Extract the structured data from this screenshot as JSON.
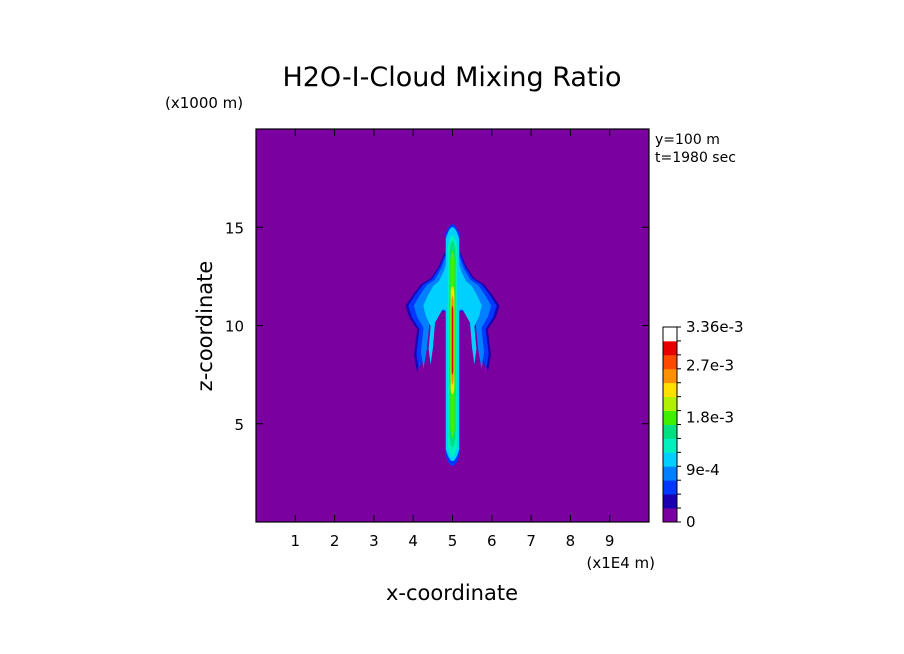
{
  "chart_data": {
    "type": "heatmap",
    "title": "H2O-I-Cloud Mixing Ratio",
    "xlabel": "x-coordinate",
    "ylabel": "z-coordinate",
    "x_unit": "(x1E4 m)",
    "y_unit": "(x1000 m)",
    "annotations": [
      "y=100 m",
      "t=1980 sec"
    ],
    "xlim": [
      0,
      10
    ],
    "ylim": [
      0,
      20
    ],
    "x_ticks": [
      1,
      2,
      3,
      4,
      5,
      6,
      7,
      8,
      9
    ],
    "y_ticks": [
      5,
      10,
      15
    ],
    "colorbar": {
      "range": [
        0,
        0.00336
      ],
      "labels": [
        {
          "value": 0,
          "text": "0"
        },
        {
          "value": 0.0009,
          "text": "9e-4"
        },
        {
          "value": 0.0018,
          "text": "1.8e-3"
        },
        {
          "value": 0.0027,
          "text": "2.7e-3"
        },
        {
          "value": 0.00336,
          "text": "3.36e-3"
        }
      ],
      "colors": [
        "#7a00a0",
        "#1a00b0",
        "#0038ff",
        "#0080ff",
        "#00d0ff",
        "#00f0c0",
        "#00e080",
        "#40f000",
        "#b0f000",
        "#ffe000",
        "#ff9000",
        "#ff4800",
        "#e80000",
        "#ffffff"
      ]
    },
    "plume": {
      "stem": {
        "x_center": 5.0,
        "z_bottom": 2.9,
        "z_top": 15.1,
        "half_width": 0.17,
        "core_max": 0.0029
      },
      "anvil": {
        "x_range": [
          3.85,
          6.15
        ],
        "z_range": [
          9.9,
          13.0
        ]
      },
      "skirt_tips": {
        "left": [
          4.1,
          7.6
        ],
        "right": [
          5.95,
          7.6
        ]
      }
    }
  }
}
